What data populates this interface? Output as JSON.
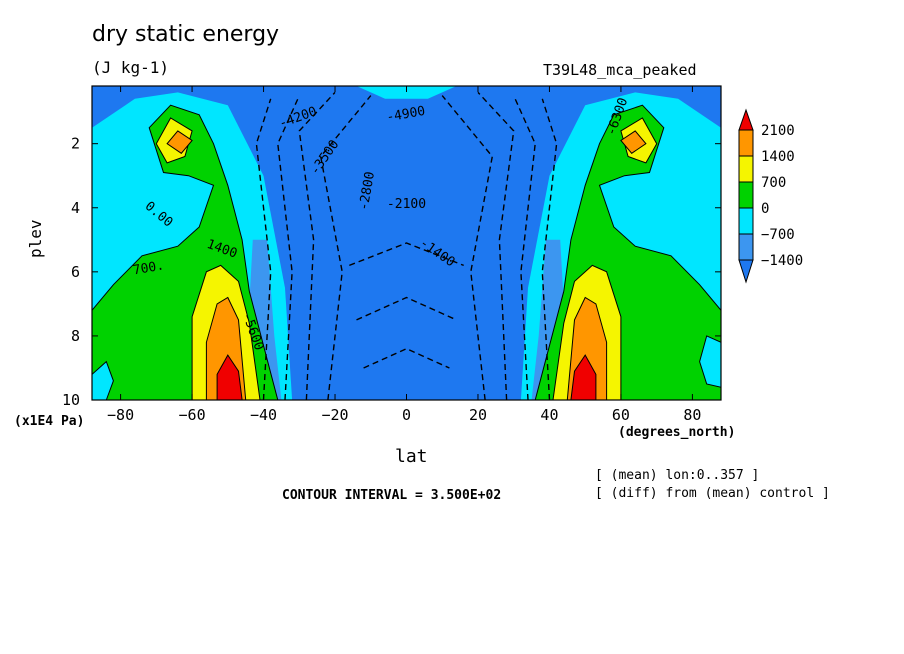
{
  "title": "dry static energy",
  "units": "(J kg-1)",
  "run_name": "T39L48_mca_peaked",
  "notes": [
    "[ (mean) lon:0..357 ]",
    "[ (diff) from (mean) control ]"
  ],
  "contour_interval": "CONTOUR INTERVAL = 3.500E+02",
  "colors": {
    "lt_-1400": "#1e78f0",
    "-1400_-700": "#3c96f0",
    "-700_0": "#00e6ff",
    "0_700": "#00d200",
    "700_1400": "#f5f500",
    "1400_2100": "#ff9600",
    "gt_2100": "#f00000"
  },
  "chart_data": {
    "type": "heatmap",
    "subtype": "filled-contour",
    "title": "dry static energy",
    "xlabel": "lat",
    "x_units": "(degrees_north)",
    "ylabel": "plev",
    "y_units": "(x1E4 Pa)",
    "xlim": [
      -88,
      88
    ],
    "ylim": [
      10,
      0.2
    ],
    "x_ticks": [
      -80,
      -60,
      -40,
      -20,
      0,
      20,
      40,
      60,
      80
    ],
    "y_ticks": [
      2,
      4,
      6,
      8,
      10
    ],
    "colorbar": {
      "levels": [
        -1400,
        -700,
        0,
        700,
        1400,
        2100
      ],
      "labels": [
        "2100",
        "1400",
        "700",
        "0",
        "−700",
        "−1400"
      ],
      "extend": "both"
    },
    "contour_labels": [
      "-4200",
      "-4900",
      "-3500",
      "-2800",
      "-2100",
      "-1400",
      "0.00",
      "700.",
      "1400",
      "-5600",
      "-6300"
    ],
    "regions": [
      {
        "class": "0_700",
        "pts": [
          [
            -88,
            10
          ],
          [
            -88,
            7.2
          ],
          [
            -82,
            6.4
          ],
          [
            -74,
            5.5
          ],
          [
            -64,
            5.2
          ],
          [
            -58,
            4.6
          ],
          [
            -54,
            3.3
          ],
          [
            -61,
            3.0
          ],
          [
            -68,
            2.9
          ],
          [
            -72,
            1.5
          ],
          [
            -66,
            0.8
          ],
          [
            -58,
            1.1
          ],
          [
            -54,
            2.0
          ],
          [
            -50,
            3.3
          ],
          [
            -46,
            5.0
          ],
          [
            -44,
            6.6
          ],
          [
            -40,
            8.3
          ],
          [
            -36,
            10
          ]
        ]
      },
      {
        "class": "0_700",
        "pts": [
          [
            88,
            10
          ],
          [
            88,
            7.2
          ],
          [
            82,
            6.4
          ],
          [
            74,
            5.5
          ],
          [
            64,
            5.2
          ],
          [
            58,
            4.6
          ],
          [
            54,
            3.3
          ],
          [
            61,
            3.0
          ],
          [
            68,
            2.9
          ],
          [
            72,
            1.5
          ],
          [
            66,
            0.8
          ],
          [
            58,
            1.1
          ],
          [
            54,
            2.0
          ],
          [
            50,
            3.3
          ],
          [
            46,
            5.0
          ],
          [
            44,
            6.6
          ],
          [
            40,
            8.3
          ],
          [
            36,
            10
          ]
        ]
      },
      {
        "class": "700_1400",
        "pts": [
          [
            -60,
            10
          ],
          [
            -60,
            7.4
          ],
          [
            -56,
            6.0
          ],
          [
            -52,
            5.8
          ],
          [
            -47,
            6.3
          ],
          [
            -44,
            7.6
          ],
          [
            -41,
            10
          ]
        ]
      },
      {
        "class": "700_1400",
        "pts": [
          [
            60,
            10
          ],
          [
            60,
            7.4
          ],
          [
            56,
            6.0
          ],
          [
            52,
            5.8
          ],
          [
            47,
            6.3
          ],
          [
            44,
            7.6
          ],
          [
            41,
            10
          ]
        ]
      },
      {
        "class": "1400_2100",
        "pts": [
          [
            -56,
            10
          ],
          [
            -56,
            8.2
          ],
          [
            -53,
            7.0
          ],
          [
            -50,
            6.8
          ],
          [
            -47,
            7.5
          ],
          [
            -45,
            10
          ]
        ]
      },
      {
        "class": "1400_2100",
        "pts": [
          [
            56,
            10
          ],
          [
            56,
            8.2
          ],
          [
            53,
            7.0
          ],
          [
            50,
            6.8
          ],
          [
            47,
            7.5
          ],
          [
            45,
            10
          ]
        ]
      },
      {
        "class": "gt_2100",
        "pts": [
          [
            -53,
            10
          ],
          [
            -53,
            9.2
          ],
          [
            -50,
            8.6
          ],
          [
            -47,
            9.1
          ],
          [
            -46,
            10
          ]
        ]
      },
      {
        "class": "gt_2100",
        "pts": [
          [
            53,
            10
          ],
          [
            53,
            9.2
          ],
          [
            50,
            8.6
          ],
          [
            47,
            9.1
          ],
          [
            46,
            10
          ]
        ]
      },
      {
        "class": "700_1400",
        "pts": [
          [
            -70,
            2.0
          ],
          [
            -66,
            1.2
          ],
          [
            -60,
            1.6
          ],
          [
            -62,
            2.4
          ],
          [
            -67,
            2.6
          ]
        ]
      },
      {
        "class": "700_1400",
        "pts": [
          [
            70,
            2.0
          ],
          [
            66,
            1.2
          ],
          [
            60,
            1.6
          ],
          [
            62,
            2.4
          ],
          [
            67,
            2.6
          ]
        ]
      },
      {
        "class": "1400_2100",
        "pts": [
          [
            -67,
            2.0
          ],
          [
            -64,
            1.6
          ],
          [
            -60,
            1.9
          ],
          [
            -63,
            2.3
          ]
        ]
      },
      {
        "class": "1400_2100",
        "pts": [
          [
            67,
            2.0
          ],
          [
            64,
            1.6
          ],
          [
            60,
            1.9
          ],
          [
            63,
            2.3
          ]
        ]
      },
      {
        "class": "-700_0",
        "pts": [
          [
            -88,
            9.2
          ],
          [
            -84,
            8.8
          ],
          [
            -82,
            9.4
          ],
          [
            -84,
            10
          ],
          [
            -88,
            10
          ]
        ]
      },
      {
        "class": "-700_0",
        "pts": [
          [
            88,
            8.2
          ],
          [
            84,
            8.0
          ],
          [
            82,
            8.8
          ],
          [
            84,
            9.5
          ],
          [
            88,
            9.6
          ]
        ]
      }
    ]
  }
}
